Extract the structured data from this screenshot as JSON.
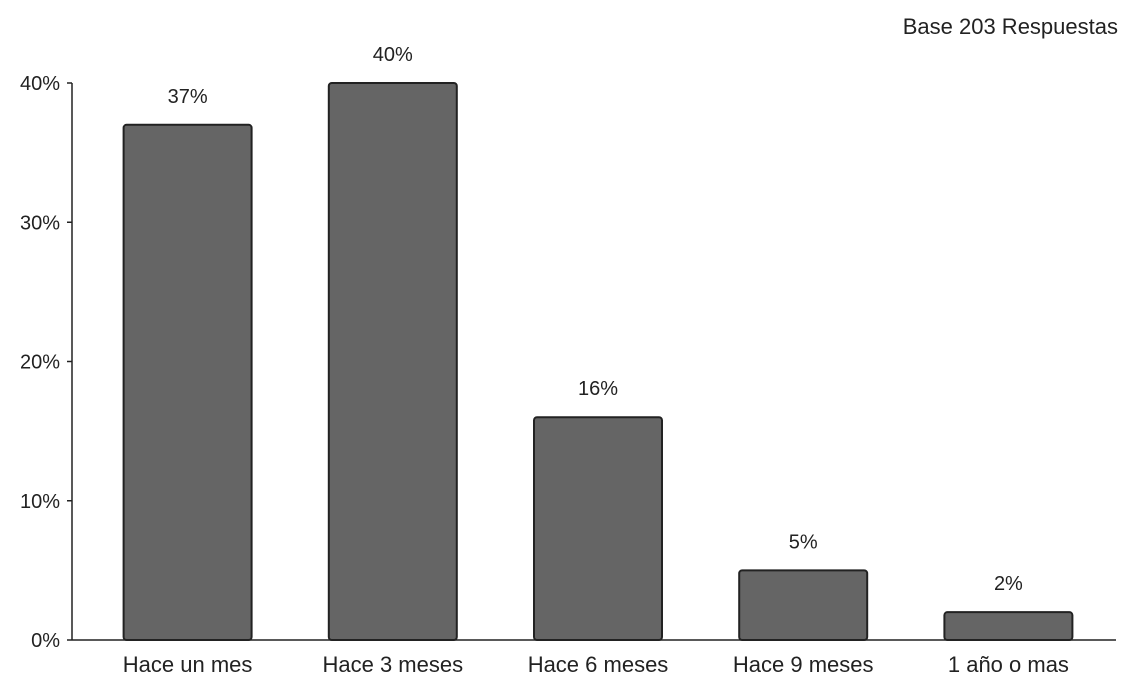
{
  "chart_data": {
    "type": "bar",
    "title": "",
    "subtitle": "Base 203 Respuestas",
    "xlabel": "",
    "ylabel": "",
    "categories": [
      "Hace un mes",
      "Hace 3 meses",
      "Hace 6 meses",
      "Hace 9 meses",
      "1 año o mas"
    ],
    "values": [
      37,
      40,
      16,
      5,
      2
    ],
    "data_labels": [
      "37%",
      "40%",
      "16%",
      "5%",
      "2%"
    ],
    "ylim": [
      0,
      40
    ],
    "yticks": [
      0,
      10,
      20,
      30,
      40
    ],
    "ytick_labels": [
      "0%",
      "10%",
      "20%",
      "30%",
      "40%"
    ],
    "grid": false,
    "legend": "none",
    "bar_color": "#656565",
    "bar_stroke": "#222222"
  }
}
